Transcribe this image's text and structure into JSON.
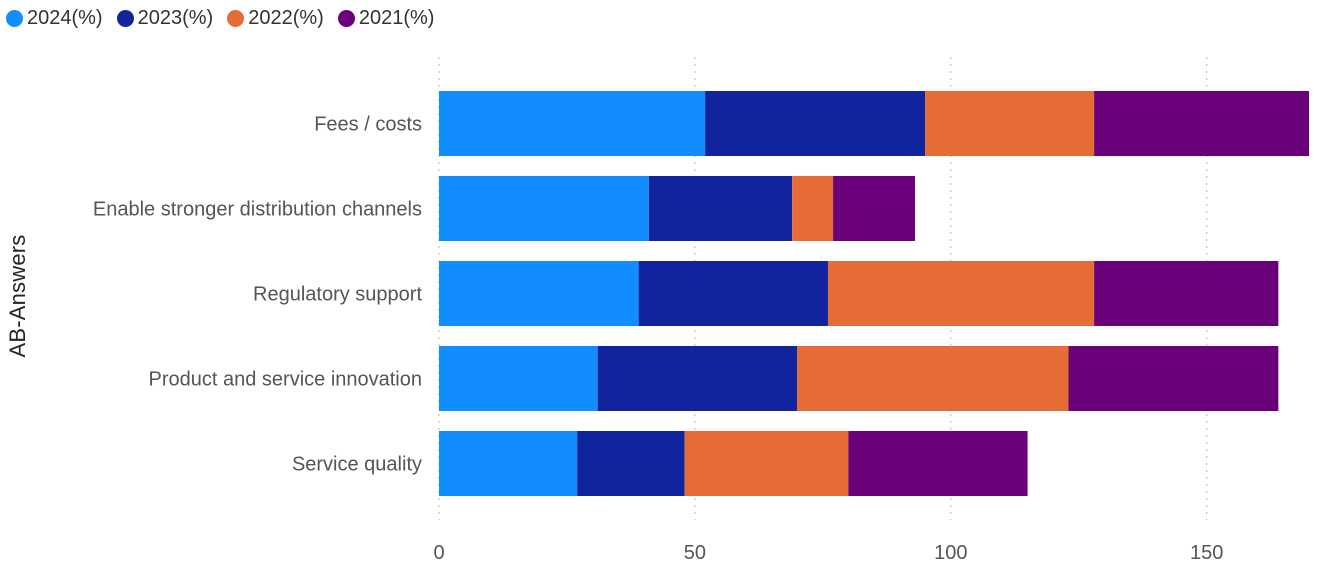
{
  "legend": {
    "items": [
      {
        "label": "2024(%)",
        "color": "#118DFF"
      },
      {
        "label": "2023(%)",
        "color": "#12239E"
      },
      {
        "label": "2022(%)",
        "color": "#E66C37"
      },
      {
        "label": "2021(%)",
        "color": "#6B007B"
      }
    ]
  },
  "chart_data": {
    "type": "bar",
    "orientation": "horizontal",
    "stacked": true,
    "title": "",
    "xlabel": "",
    "ylabel": "AB-Answers",
    "categories": [
      "Fees / costs",
      "Enable stronger distribution channels",
      "Regulatory support",
      "Product and service innovation",
      "Service quality"
    ],
    "series": [
      {
        "name": "2024(%)",
        "color": "#118DFF",
        "values": [
          52,
          41,
          39,
          31,
          27
        ]
      },
      {
        "name": "2023(%)",
        "color": "#12239E",
        "values": [
          43,
          28,
          37,
          39,
          21
        ]
      },
      {
        "name": "2022(%)",
        "color": "#E66C37",
        "values": [
          33,
          8,
          52,
          53,
          32
        ]
      },
      {
        "name": "2021(%)",
        "color": "#6B007B",
        "values": [
          42,
          16,
          36,
          41,
          35
        ]
      }
    ],
    "xlim": [
      0,
      170
    ],
    "xticks": [
      0,
      50,
      100,
      150
    ],
    "grid": "vertical-dotted",
    "legend_position": "top-left"
  }
}
